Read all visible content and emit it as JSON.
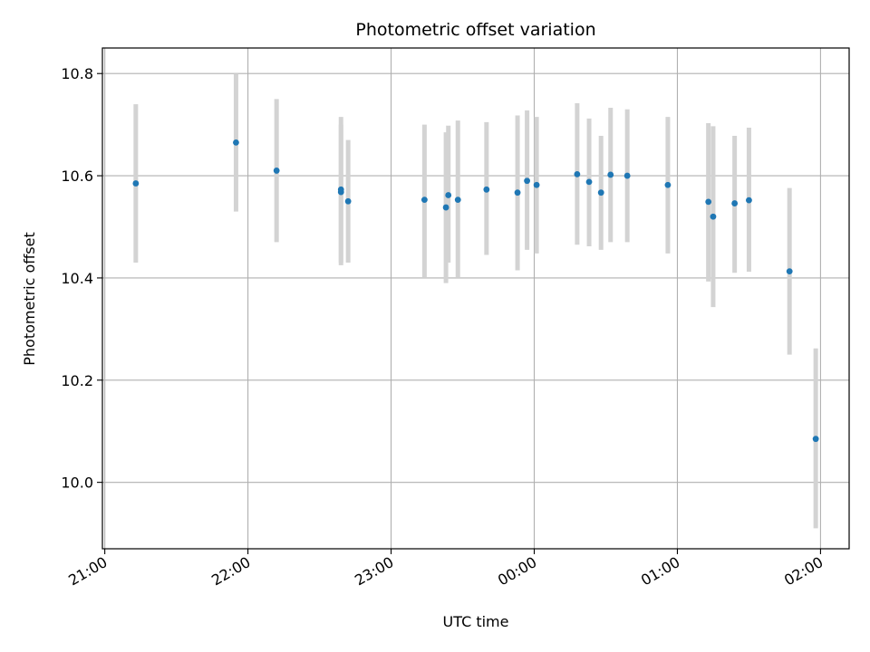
{
  "chart_data": {
    "type": "scatter",
    "title": "Photometric offset variation",
    "xlabel": "UTC time",
    "ylabel": "Photometric offset",
    "x_tick_labels": [
      "21:00",
      "22:00",
      "23:00",
      "00:00",
      "01:00",
      "02:00"
    ],
    "y_tick_labels": [
      "10.0",
      "10.2",
      "10.4",
      "10.6",
      "10.8"
    ],
    "y_ticks": [
      10.0,
      10.2,
      10.4,
      10.6,
      10.8
    ],
    "xlim": [
      "20:59",
      "02:12"
    ],
    "ylim": [
      9.87,
      10.85
    ],
    "grid": true,
    "error_bar_color": "#d3d3d3",
    "point_color": "#1f77b4",
    "series": [
      {
        "points": [
          {
            "x": "21:13",
            "y": 10.585,
            "yerr_low": 10.43,
            "yerr_high": 10.74
          },
          {
            "x": "21:55",
            "y": 10.665,
            "yerr_low": 10.53,
            "yerr_high": 10.8
          },
          {
            "x": "22:12",
            "y": 10.61,
            "yerr_low": 10.47,
            "yerr_high": 10.75
          },
          {
            "x": "22:39",
            "y": 10.573,
            "yerr_low": 10.425,
            "yerr_high": 10.715
          },
          {
            "x": "22:39",
            "y": 10.568,
            "yerr_low": 10.43,
            "yerr_high": 10.7
          },
          {
            "x": "22:42",
            "y": 10.55,
            "yerr_low": 10.43,
            "yerr_high": 10.67
          },
          {
            "x": "23:14",
            "y": 10.553,
            "yerr_low": 10.4,
            "yerr_high": 10.7
          },
          {
            "x": "23:23",
            "y": 10.538,
            "yerr_low": 10.39,
            "yerr_high": 10.685
          },
          {
            "x": "23:24",
            "y": 10.562,
            "yerr_low": 10.43,
            "yerr_high": 10.698
          },
          {
            "x": "23:28",
            "y": 10.553,
            "yerr_low": 10.4,
            "yerr_high": 10.708
          },
          {
            "x": "23:40",
            "y": 10.573,
            "yerr_low": 10.445,
            "yerr_high": 10.705
          },
          {
            "x": "23:53",
            "y": 10.567,
            "yerr_low": 10.415,
            "yerr_high": 10.718
          },
          {
            "x": "23:57",
            "y": 10.59,
            "yerr_low": 10.455,
            "yerr_high": 10.728
          },
          {
            "x": "00:01",
            "y": 10.582,
            "yerr_low": 10.448,
            "yerr_high": 10.715
          },
          {
            "x": "00:18",
            "y": 10.603,
            "yerr_low": 10.465,
            "yerr_high": 10.742
          },
          {
            "x": "00:23",
            "y": 10.588,
            "yerr_low": 10.462,
            "yerr_high": 10.712
          },
          {
            "x": "00:28",
            "y": 10.567,
            "yerr_low": 10.455,
            "yerr_high": 10.678
          },
          {
            "x": "00:32",
            "y": 10.602,
            "yerr_low": 10.47,
            "yerr_high": 10.733
          },
          {
            "x": "00:39",
            "y": 10.6,
            "yerr_low": 10.47,
            "yerr_high": 10.73
          },
          {
            "x": "00:56",
            "y": 10.582,
            "yerr_low": 10.448,
            "yerr_high": 10.715
          },
          {
            "x": "01:13",
            "y": 10.549,
            "yerr_low": 10.393,
            "yerr_high": 10.703
          },
          {
            "x": "01:15",
            "y": 10.52,
            "yerr_low": 10.343,
            "yerr_high": 10.697
          },
          {
            "x": "01:24",
            "y": 10.546,
            "yerr_low": 10.41,
            "yerr_high": 10.678
          },
          {
            "x": "01:30",
            "y": 10.552,
            "yerr_low": 10.412,
            "yerr_high": 10.694
          },
          {
            "x": "01:47",
            "y": 10.413,
            "yerr_low": 10.25,
            "yerr_high": 10.576
          },
          {
            "x": "01:58",
            "y": 10.085,
            "yerr_low": 9.91,
            "yerr_high": 10.262
          }
        ]
      }
    ]
  }
}
